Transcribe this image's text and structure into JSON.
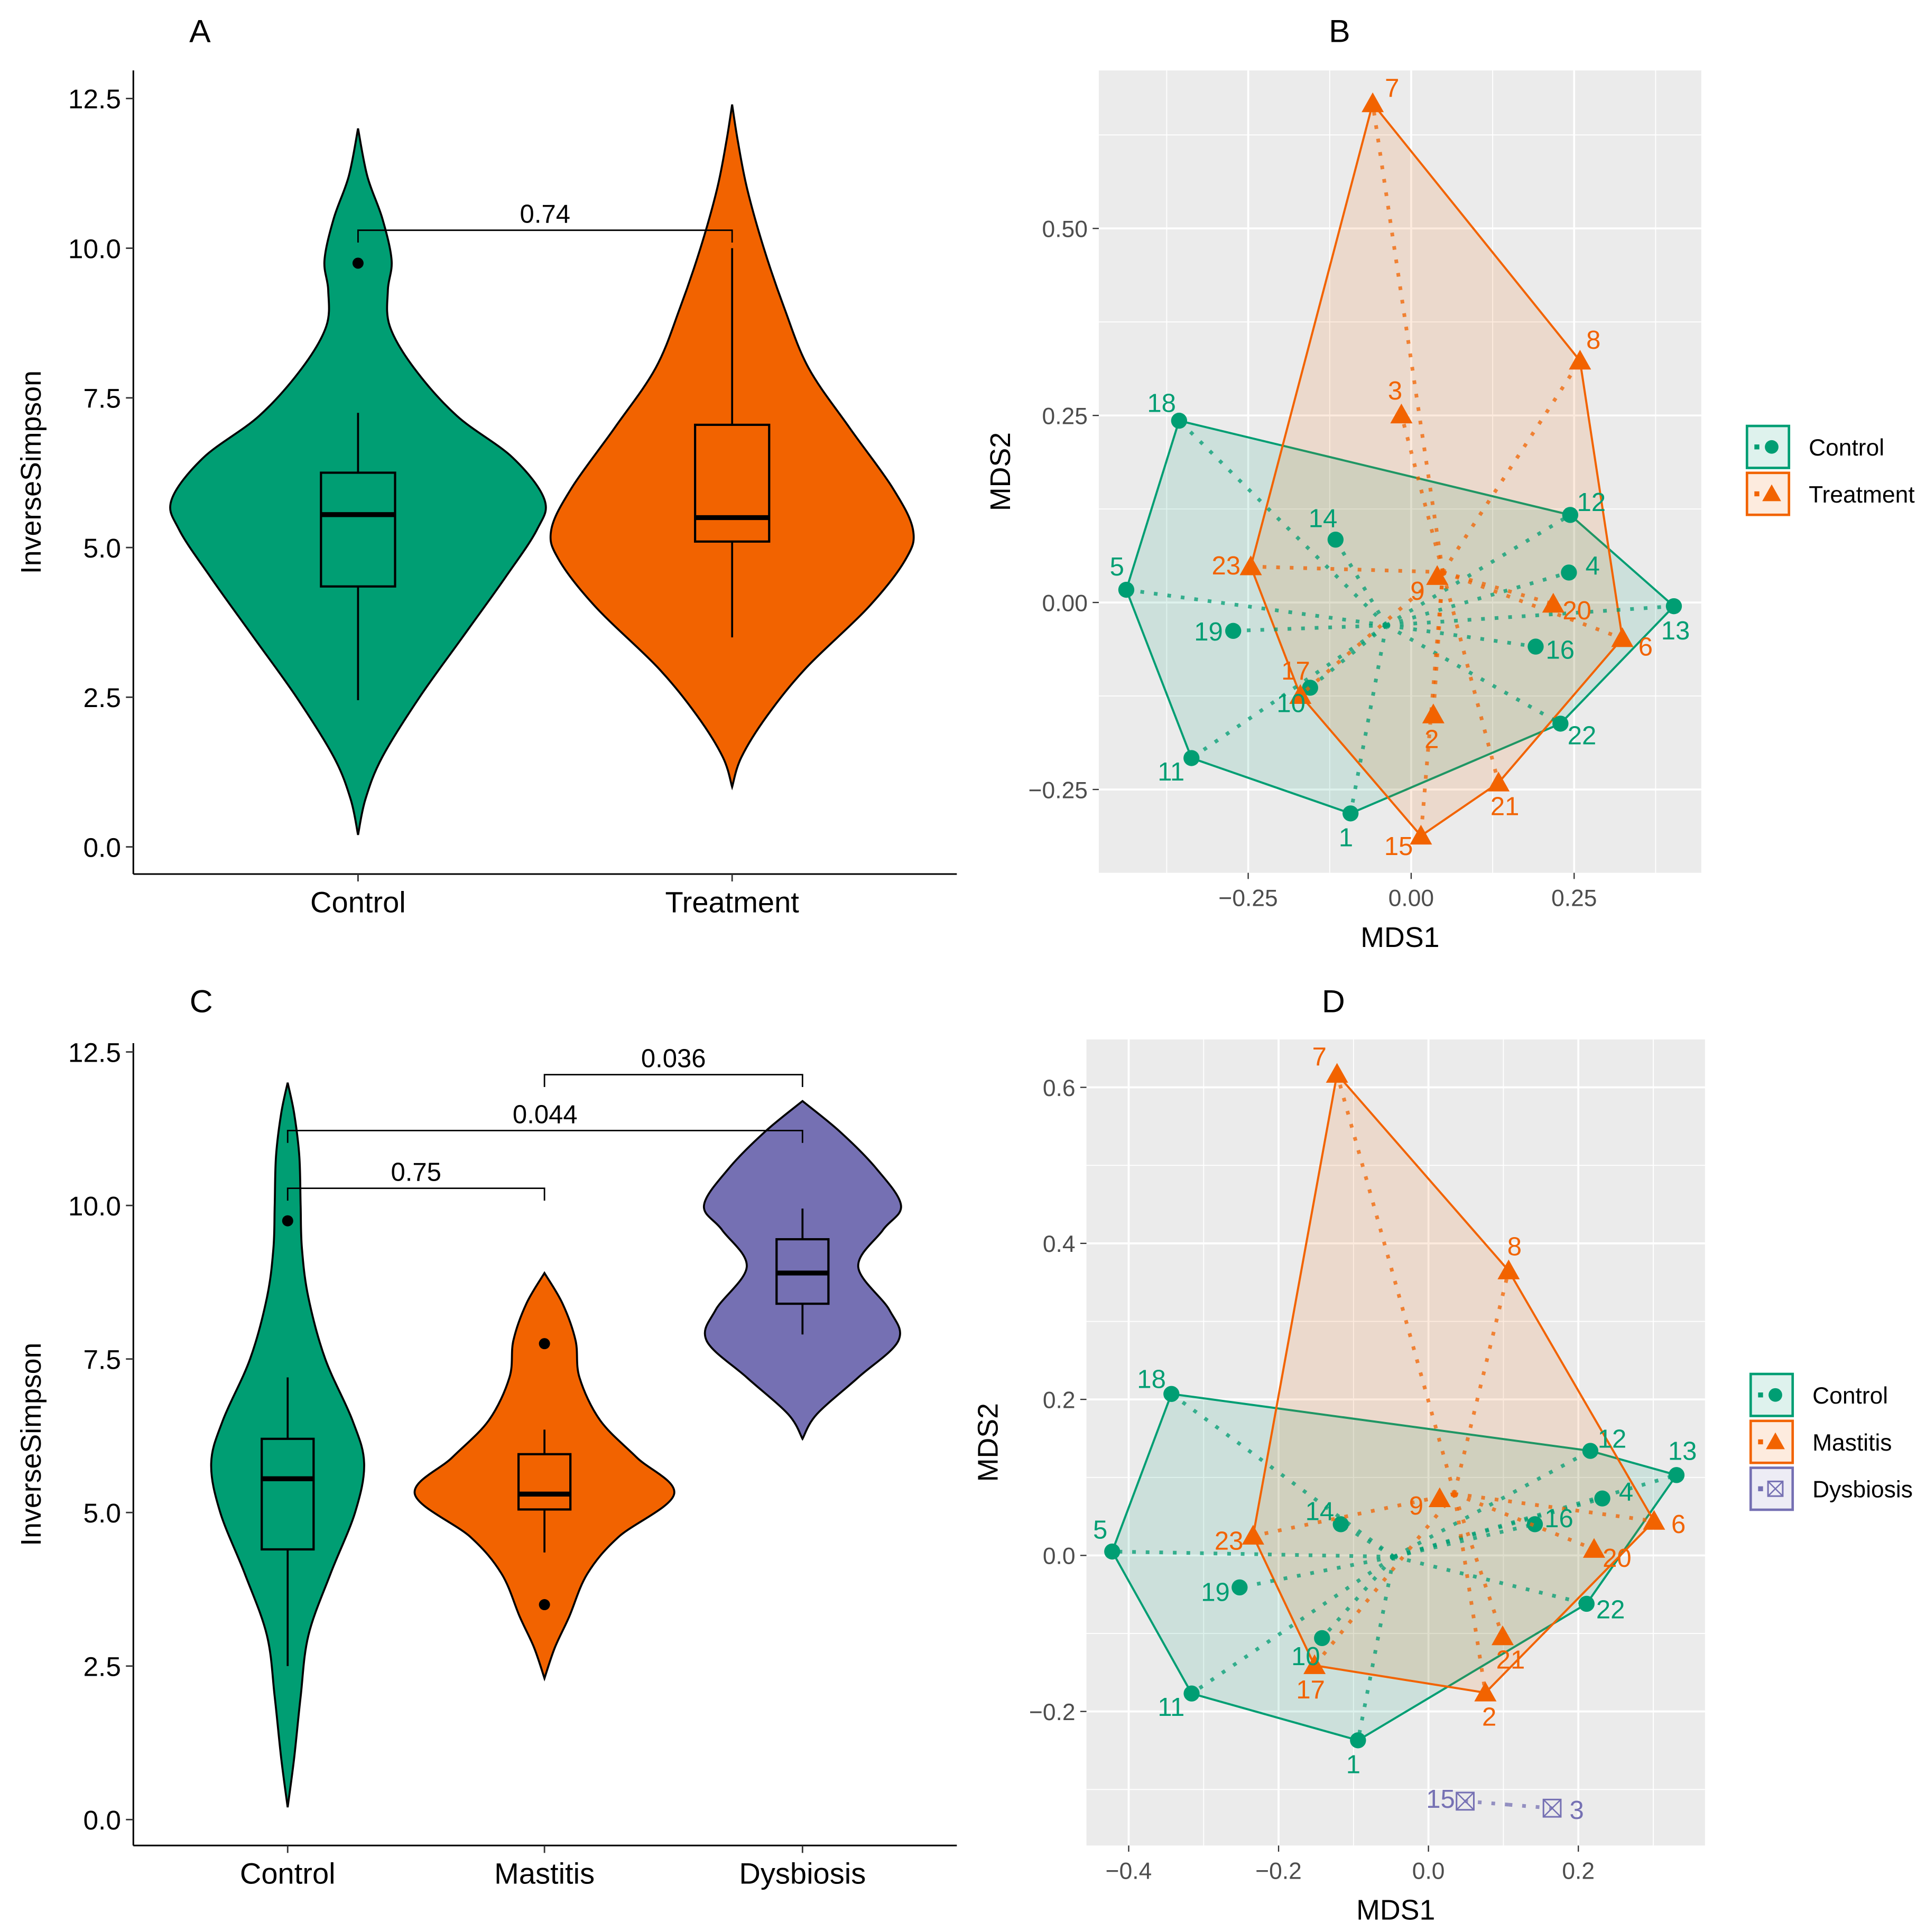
{
  "colors": {
    "control": "#009e73",
    "treatment": "#f26300",
    "dysbiosis": "#7570b3",
    "panel_bg": "#ebebeb"
  },
  "chart_data": [
    {
      "panel": "A",
      "type": "violin",
      "ylabel": "InverseSimpson",
      "ylim": [
        0,
        12.5
      ],
      "yticks": [
        "0.0",
        "2.5",
        "5.0",
        "7.5",
        "10.0",
        "12.5"
      ],
      "categories": [
        "Control",
        "Treatment"
      ],
      "groups": [
        {
          "name": "Control",
          "color_key": "control",
          "density_y": [
            0.2,
            0.8,
            1.5,
            2.5,
            3.5,
            4.5,
            5.3,
            5.8,
            6.5,
            7.2,
            8,
            8.7,
            9.3,
            9.8,
            10.5,
            11.2,
            12.0
          ],
          "density": [
            0,
            0.04,
            0.13,
            0.33,
            0.56,
            0.79,
            0.96,
            1,
            0.83,
            0.53,
            0.3,
            0.17,
            0.16,
            0.18,
            0.13,
            0.05,
            0
          ],
          "box": {
            "lower_whisker": 2.45,
            "q1": 4.35,
            "median": 5.55,
            "q3": 6.25,
            "upper_whisker": 7.25
          },
          "outliers": [
            9.75
          ]
        },
        {
          "name": "Treatment",
          "color_key": "treatment",
          "density_y": [
            1.0,
            1.5,
            2.2,
            3,
            4,
            4.8,
            5.3,
            6,
            7,
            8,
            9,
            10,
            11,
            11.8,
            12.4
          ],
          "density": [
            0,
            0.05,
            0.19,
            0.4,
            0.73,
            0.93,
            0.97,
            0.86,
            0.63,
            0.41,
            0.28,
            0.17,
            0.08,
            0.03,
            0
          ],
          "box": {
            "lower_whisker": 3.5,
            "q1": 5.1,
            "median": 5.5,
            "q3": 7.05,
            "upper_whisker": 10.0
          },
          "outliers": []
        }
      ],
      "comparisons": [
        {
          "from": 0,
          "to": 1,
          "y": 10.3,
          "label": "0.74"
        }
      ]
    },
    {
      "panel": "B",
      "type": "scatter",
      "xlabel": "MDS1",
      "ylabel": "MDS2",
      "xlim": [
        -0.479,
        0.445
      ],
      "ylim": [
        -0.361,
        0.711
      ],
      "xticks": [
        -0.25,
        0,
        0.25
      ],
      "xtick_labels": [
        "−0.25",
        "0.00",
        "0.25"
      ],
      "yticks": [
        -0.25,
        0,
        0.25,
        0.5
      ],
      "ytick_labels": [
        "−0.25",
        "0.00",
        "0.25",
        "0.50"
      ],
      "legend": [
        {
          "label": "Control",
          "color_key": "control",
          "shape": "circle"
        },
        {
          "label": "Treatment",
          "color_key": "treatment",
          "shape": "triangle"
        }
      ],
      "series": [
        {
          "name": "Control",
          "color_key": "control",
          "shape": "circle",
          "points": [
            {
              "id": "18",
              "x": -0.356,
              "y": 0.243
            },
            {
              "id": "5",
              "x": -0.437,
              "y": 0.017
            },
            {
              "id": "11",
              "x": -0.337,
              "y": -0.208
            },
            {
              "id": "1",
              "x": -0.093,
              "y": -0.282
            },
            {
              "id": "22",
              "x": 0.229,
              "y": -0.162
            },
            {
              "id": "13",
              "x": 0.403,
              "y": -0.005
            },
            {
              "id": "12",
              "x": 0.244,
              "y": 0.117
            },
            {
              "id": "4",
              "x": 0.242,
              "y": 0.04
            },
            {
              "id": "16",
              "x": 0.191,
              "y": -0.059
            },
            {
              "id": "14",
              "x": -0.116,
              "y": 0.084
            },
            {
              "id": "19",
              "x": -0.273,
              "y": -0.038
            },
            {
              "id": "10",
              "x": -0.155,
              "y": -0.114
            }
          ]
        },
        {
          "name": "Treatment",
          "color_key": "treatment",
          "shape": "triangle",
          "points": [
            {
              "id": "7",
              "x": -0.059,
              "y": 0.667
            },
            {
              "id": "8",
              "x": 0.259,
              "y": 0.323
            },
            {
              "id": "3",
              "x": -0.015,
              "y": 0.251
            },
            {
              "id": "23",
              "x": -0.246,
              "y": 0.048
            },
            {
              "id": "9",
              "x": 0.04,
              "y": 0.035
            },
            {
              "id": "20",
              "x": 0.218,
              "y": -0.002
            },
            {
              "id": "6",
              "x": 0.324,
              "y": -0.048
            },
            {
              "id": "17",
              "x": -0.17,
              "y": -0.124
            },
            {
              "id": "2",
              "x": 0.034,
              "y": -0.15
            },
            {
              "id": "21",
              "x": 0.134,
              "y": -0.241
            },
            {
              "id": "15",
              "x": 0.015,
              "y": -0.312
            }
          ]
        }
      ]
    },
    {
      "panel": "C",
      "type": "violin",
      "ylabel": "InverseSimpson",
      "ylim": [
        0,
        12.5
      ],
      "yticks": [
        "0.0",
        "2.5",
        "5.0",
        "7.5",
        "10.0",
        "12.5"
      ],
      "categories": [
        "Control",
        "Mastitis",
        "Dysbiosis"
      ],
      "groups": [
        {
          "name": "Control",
          "color_key": "control",
          "density_y": [
            0.2,
            1,
            2,
            3,
            4,
            5,
            5.8,
            6.5,
            7.5,
            8.5,
            9.3,
            10,
            10.8,
            11.5,
            12.0
          ],
          "density": [
            0,
            0.05,
            0.1,
            0.16,
            0.33,
            0.52,
            0.59,
            0.5,
            0.29,
            0.16,
            0.11,
            0.1,
            0.09,
            0.05,
            0
          ],
          "box": {
            "lower_whisker": 2.5,
            "q1": 4.4,
            "median": 5.55,
            "q3": 6.2,
            "upper_whisker": 7.2
          },
          "outliers": [
            9.75
          ]
        },
        {
          "name": "Mastitis",
          "color_key": "treatment",
          "density_y": [
            2.3,
            2.8,
            3.3,
            4,
            4.6,
            5.3,
            5.9,
            6.5,
            7.2,
            7.8,
            8.4,
            8.9
          ],
          "density": [
            0,
            0.08,
            0.19,
            0.33,
            0.57,
            1,
            0.71,
            0.43,
            0.27,
            0.24,
            0.14,
            0
          ],
          "box": {
            "lower_whisker": 4.35,
            "q1": 5.05,
            "median": 5.3,
            "q3": 5.95,
            "upper_whisker": 6.35
          },
          "outliers": [
            7.75,
            3.5
          ]
        },
        {
          "name": "Dysbiosis",
          "color_key": "dysbiosis",
          "density_y": [
            6.2,
            6.6,
            7.2,
            7.8,
            8.3,
            9,
            9.6,
            10,
            10.6,
            11.2,
            11.7
          ],
          "density": [
            0,
            0.11,
            0.43,
            0.74,
            0.67,
            0.43,
            0.62,
            0.76,
            0.57,
            0.29,
            0
          ],
          "box": {
            "lower_whisker": 7.9,
            "q1": 8.4,
            "median": 8.9,
            "q3": 9.45,
            "upper_whisker": 9.95
          },
          "outliers": []
        }
      ],
      "comparisons": [
        {
          "from": 0,
          "to": 1,
          "y": 10.28,
          "label": "0.75"
        },
        {
          "from": 0,
          "to": 2,
          "y": 11.22,
          "label": "0.044"
        },
        {
          "from": 1,
          "to": 2,
          "y": 12.13,
          "label": "0.036"
        }
      ]
    },
    {
      "panel": "D",
      "type": "scatter",
      "xlabel": "MDS1",
      "ylabel": "MDS2",
      "xlim": [
        -0.454,
        0.369
      ],
      "ylim": [
        -0.372,
        0.661
      ],
      "xticks": [
        -0.4,
        -0.2,
        0,
        0.2
      ],
      "xtick_labels": [
        "−0.4",
        "−0.2",
        "0.0",
        "0.2"
      ],
      "yticks": [
        -0.2,
        0,
        0.2,
        0.4,
        0.6
      ],
      "ytick_labels": [
        "−0.2",
        "0.0",
        "0.2",
        "0.4",
        "0.6"
      ],
      "legend": [
        {
          "label": "Control",
          "color_key": "control",
          "shape": "circle"
        },
        {
          "label": "Mastitis",
          "color_key": "treatment",
          "shape": "triangle"
        },
        {
          "label": "Dysbiosis",
          "color_key": "dysbiosis",
          "shape": "boxx"
        }
      ],
      "series": [
        {
          "name": "Control",
          "color_key": "control",
          "shape": "circle",
          "points": [
            {
              "id": "18",
              "x": -0.343,
              "y": 0.207
            },
            {
              "id": "5",
              "x": -0.422,
              "y": 0.005
            },
            {
              "id": "11",
              "x": -0.316,
              "y": -0.177
            },
            {
              "id": "1",
              "x": -0.094,
              "y": -0.237
            },
            {
              "id": "22",
              "x": 0.211,
              "y": -0.062
            },
            {
              "id": "13",
              "x": 0.331,
              "y": 0.103
            },
            {
              "id": "12",
              "x": 0.216,
              "y": 0.134
            },
            {
              "id": "4",
              "x": 0.232,
              "y": 0.073
            },
            {
              "id": "16",
              "x": 0.142,
              "y": 0.04
            },
            {
              "id": "14",
              "x": -0.117,
              "y": 0.04
            },
            {
              "id": "19",
              "x": -0.252,
              "y": -0.041
            },
            {
              "id": "10",
              "x": -0.142,
              "y": -0.106
            }
          ]
        },
        {
          "name": "Mastitis",
          "color_key": "treatment",
          "shape": "triangle",
          "points": [
            {
              "id": "7",
              "x": -0.122,
              "y": 0.617
            },
            {
              "id": "8",
              "x": 0.107,
              "y": 0.365
            },
            {
              "id": "9",
              "x": 0.015,
              "y": 0.073
            },
            {
              "id": "23",
              "x": -0.234,
              "y": 0.025
            },
            {
              "id": "20",
              "x": 0.221,
              "y": 0.008
            },
            {
              "id": "6",
              "x": 0.301,
              "y": 0.044
            },
            {
              "id": "17",
              "x": -0.152,
              "y": -0.141
            },
            {
              "id": "2",
              "x": 0.076,
              "y": -0.176
            },
            {
              "id": "21",
              "x": 0.099,
              "y": -0.104
            }
          ]
        },
        {
          "name": "Dysbiosis",
          "color_key": "dysbiosis",
          "shape": "boxx",
          "points": [
            {
              "id": "15",
              "x": 0.049,
              "y": -0.315
            },
            {
              "id": "3",
              "x": 0.165,
              "y": -0.324
            }
          ]
        }
      ]
    }
  ]
}
